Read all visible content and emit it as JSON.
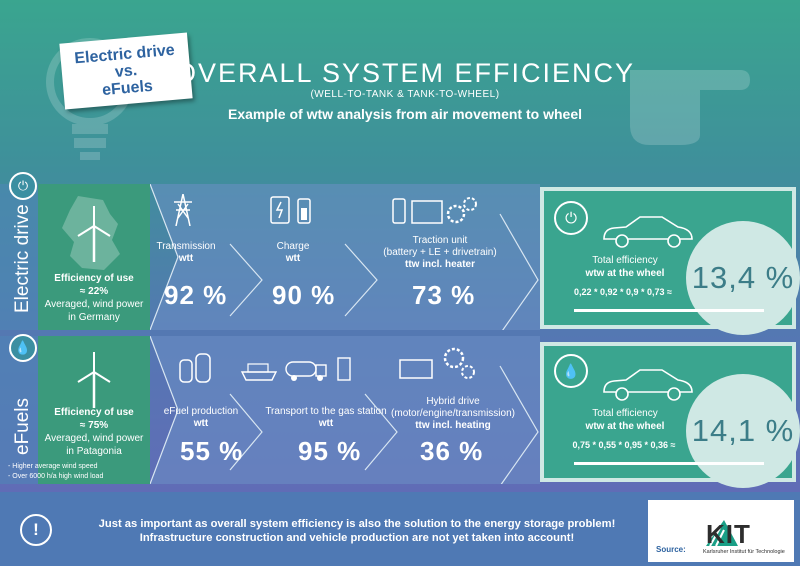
{
  "badge": {
    "line1": "Electric drive",
    "line2": "vs.",
    "line3": "eFuels"
  },
  "header": {
    "title": "OVERALL SYSTEM EFFICIENCY",
    "subtitle": "(WELL-TO-TANK & TANK-TO-WHEEL)",
    "example": "Example of wtw analysis from air movement to wheel"
  },
  "electric": {
    "side_label": "Electric drive",
    "efficiency": {
      "title": "Efficiency of use",
      "value": "≈ 22%",
      "desc1": "Averaged, wind power",
      "desc2": "in Germany"
    },
    "steps": [
      {
        "label": "Transmission",
        "type": "wtt",
        "value": "92 %"
      },
      {
        "label": "Charge",
        "type": "wtt",
        "value": "90 %"
      },
      {
        "label1": "Traction unit",
        "label2": "(battery + LE + drivetrain)",
        "type": "ttw incl. heater",
        "value": "73 %"
      }
    ],
    "total": {
      "title": "Total efficiency",
      "subtitle": "wtw at the wheel",
      "formula": "0,22 * 0,92 * 0,9 * 0,73 ≈",
      "value": "13,4 %"
    }
  },
  "efuels": {
    "side_label": "eFuels",
    "efficiency": {
      "title": "Efficiency of use",
      "value": "≈ 75%",
      "desc1": "Averaged, wind power",
      "desc2": "in Patagonia",
      "note1": "- Higher average wind speed",
      "note2": "- Over 6000 h/a high wind load"
    },
    "steps": [
      {
        "label": "eFuel production",
        "type": "wtt",
        "value": "55 %"
      },
      {
        "label": "Transport to the gas station",
        "type": "wtt",
        "value": "95 %"
      },
      {
        "label1": "Hybrid drive",
        "label2": "(motor/engine/transmission)",
        "type": "ttw incl. heating",
        "value": "36 %"
      }
    ],
    "total": {
      "title": "Total efficiency",
      "subtitle": "wtw at the wheel",
      "formula": "0,75 * 0,55 * 0,95 * 0,36 ≈",
      "value": "14,1 %"
    }
  },
  "footer": {
    "line1": "Just as important as overall system efficiency is also the solution to the energy storage problem!",
    "line2": "Infrastructure construction and vehicle production are not yet taken into account!",
    "source_label": "Source:",
    "logo_text": "KIT",
    "logo_sub": "Karlsruher Institut für Technologie"
  },
  "icons": [
    "lightbulb-icon",
    "pointing-hand-icon",
    "plug-icon",
    "drop-icon",
    "wind-turbine-icon",
    "pylon-icon",
    "charger-icon",
    "battery-icon",
    "gear-icon",
    "factory-icon",
    "ship-icon",
    "tank-truck-icon",
    "fuel-pump-icon",
    "engine-icon",
    "car-icon",
    "exclamation-icon"
  ]
}
